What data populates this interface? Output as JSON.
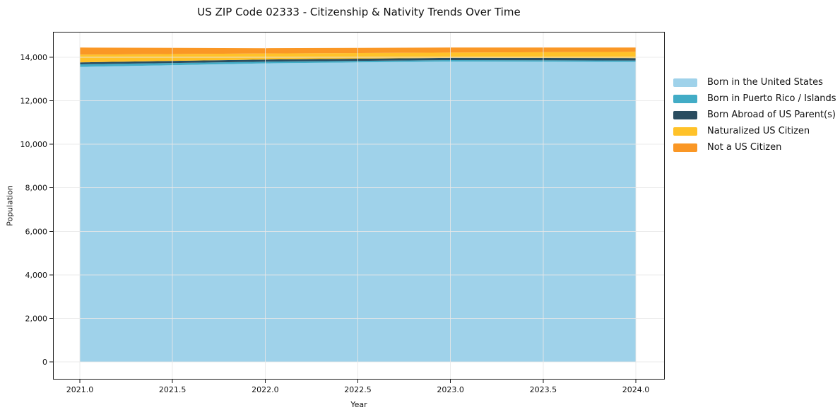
{
  "chart_data": {
    "type": "area",
    "stacked": true,
    "title": "US ZIP Code 02333 - Citizenship & Nativity Trends Over Time",
    "xlabel": "Year",
    "ylabel": "Population",
    "grid": true,
    "legend_position": "right outside",
    "xlim": [
      2020.85,
      2024.16
    ],
    "ylim": [
      -760,
      15160
    ],
    "x": [
      2021,
      2022,
      2023,
      2024
    ],
    "series": [
      {
        "name": "Born in the United States",
        "color": "#9FD2EA",
        "values": [
          13555,
          13720,
          13805,
          13785
        ]
      },
      {
        "name": "Born in Puerto Rico / Islands",
        "color": "#42ACC6",
        "values": [
          120,
          80,
          65,
          65
        ]
      },
      {
        "name": "Born Abroad of US Parent(s)",
        "color": "#2A4D60",
        "values": [
          90,
          95,
          105,
          110
        ]
      },
      {
        "name": "Naturalized US Citizen",
        "color": "#FFC229",
        "values": [
          355,
          280,
          240,
          290
        ]
      },
      {
        "name": "Not a US Citizen",
        "color": "#FA9725",
        "values": [
          325,
          240,
          230,
          195
        ]
      }
    ],
    "x_ticks": [
      {
        "v": 2021.0,
        "label": "2021.0"
      },
      {
        "v": 2021.5,
        "label": "2021.5"
      },
      {
        "v": 2022.0,
        "label": "2022.0"
      },
      {
        "v": 2022.5,
        "label": "2022.5"
      },
      {
        "v": 2023.0,
        "label": "2023.0"
      },
      {
        "v": 2023.5,
        "label": "2023.5"
      },
      {
        "v": 2024.0,
        "label": "2024.0"
      }
    ],
    "y_ticks": [
      {
        "v": 0,
        "label": "0"
      },
      {
        "v": 2000,
        "label": "2,000"
      },
      {
        "v": 4000,
        "label": "4,000"
      },
      {
        "v": 6000,
        "label": "6,000"
      },
      {
        "v": 8000,
        "label": "8,000"
      },
      {
        "v": 10000,
        "label": "10,000"
      },
      {
        "v": 12000,
        "label": "12,000"
      },
      {
        "v": 14000,
        "label": "14,000"
      }
    ],
    "grid_color": "#e7e7e7"
  }
}
